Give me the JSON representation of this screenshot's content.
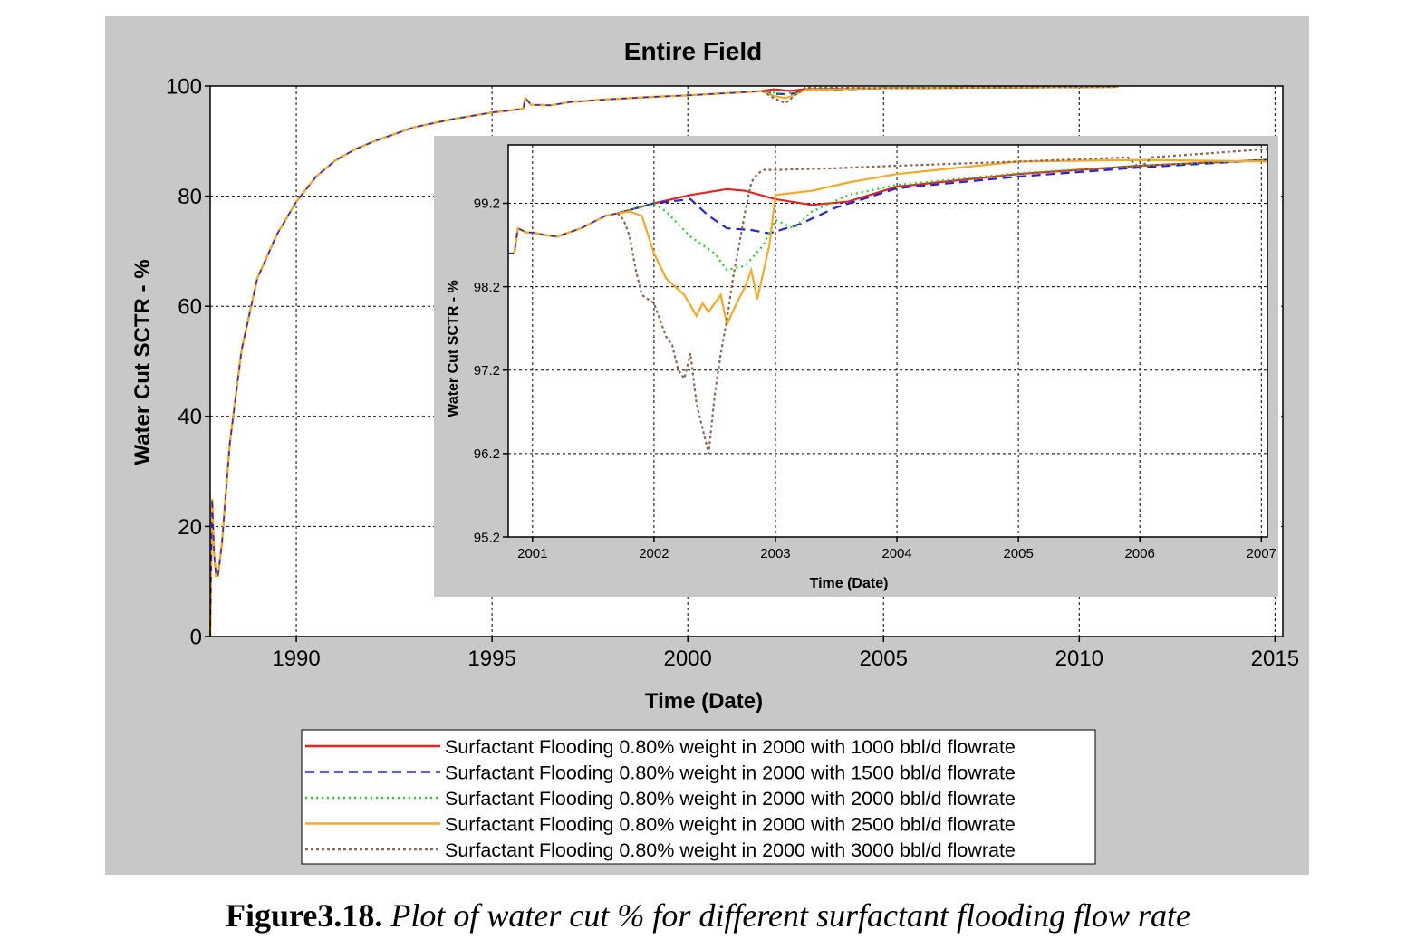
{
  "chart_data": [
    {
      "type": "line",
      "title": "Entire  Field",
      "xlabel": "Time (Date)",
      "ylabel": "Water Cut SCTR - %",
      "xlim": [
        1987.8,
        2015.2
      ],
      "ylim": [
        0,
        100
      ],
      "x_ticks": [
        "1990",
        "1995",
        "2000",
        "2005",
        "2010",
        "2015"
      ],
      "y_ticks": [
        "0",
        "20",
        "40",
        "60",
        "80",
        "100"
      ],
      "grid": true,
      "legend_position": "bottom",
      "base_history": {
        "x": [
          1987.8,
          1987.85,
          1987.9,
          1987.95,
          1988.0,
          1988.1,
          1988.3,
          1988.6,
          1989.0,
          1989.5,
          1990.0,
          1990.5,
          1991.0,
          1991.5,
          1992.0,
          1993.0,
          1994.0,
          1995.0,
          1995.5,
          1995.8,
          1995.85,
          1996.0,
          1996.5,
          1997.0,
          1998.0,
          1999.0,
          2000.0,
          2001.0,
          2001.5,
          2001.9
        ],
        "y": [
          0,
          25,
          15,
          11,
          11,
          17,
          35,
          52,
          65,
          73,
          79,
          83.5,
          86.5,
          88.5,
          90,
          92.5,
          94,
          95.2,
          95.6,
          95.9,
          97.8,
          96.6,
          96.5,
          97.1,
          97.6,
          98.0,
          98.3,
          98.7,
          98.9,
          99.1
        ]
      },
      "series": [
        {
          "name": "Surfactant Flooding 0.80% weight in 2000 with 1000 bbl/d flowrate",
          "color": "#e8221c",
          "dash": "solid",
          "x": [
            2001.9,
            2002.2,
            2002.6,
            2003.0,
            2005.0,
            2010.0,
            2011.0
          ],
          "y": [
            99.1,
            99.4,
            99.1,
            99.4,
            99.6,
            99.8,
            99.85
          ]
        },
        {
          "name": "Surfactant Flooding 0.80% weight in 2000 with 1500 bbl/d flowrate",
          "color": "#2424d8",
          "dash": "dashed",
          "x": [
            2001.9,
            2002.2,
            2002.6,
            2003.0,
            2005.0,
            2010.0,
            2011.0
          ],
          "y": [
            99.1,
            98.6,
            98.5,
            99.2,
            99.6,
            99.8,
            99.85
          ]
        },
        {
          "name": "Surfactant Flooding 0.80% weight in 2000 with 2000 bbl/d flowrate",
          "color": "#1ed21e",
          "dash": "dotted",
          "x": [
            2001.9,
            2002.2,
            2002.5,
            2002.8,
            2003.0,
            2005.0,
            2010.0,
            2011.0
          ],
          "y": [
            99.1,
            98.8,
            98.6,
            98.9,
            99.3,
            99.6,
            99.8,
            99.85
          ]
        },
        {
          "name": "Surfactant Flooding 0.80% weight in 2000 with 2500 bbl/d flowrate",
          "color": "#f7a824",
          "dash": "solid",
          "x": [
            2001.9,
            2002.2,
            2002.5,
            2002.8,
            2003.0,
            2005.0,
            2010.0,
            2011.0
          ],
          "y": [
            99.1,
            98.2,
            97.8,
            98.6,
            99.3,
            99.6,
            99.8,
            99.85
          ]
        },
        {
          "name": "Surfactant Flooding 0.80% weight in 2000 with 3000 bbl/d flowrate",
          "color": "#8b6650",
          "dash": "dashdot",
          "x": [
            2001.9,
            2002.2,
            2002.5,
            2002.8,
            2003.0,
            2005.0,
            2010.0,
            2011.0
          ],
          "y": [
            99.1,
            97.8,
            96.9,
            98.7,
            99.7,
            99.6,
            99.8,
            99.85
          ]
        }
      ]
    },
    {
      "type": "line",
      "title": "",
      "xlabel": "Time (Date)",
      "ylabel": "Water Cut SCTR - %",
      "xlim": [
        2000.8,
        2007.05
      ],
      "ylim": [
        95.2,
        99.9
      ],
      "x_ticks": [
        "2001",
        "2002",
        "2003",
        "2004",
        "2005",
        "2006",
        "2007"
      ],
      "y_ticks": [
        "95.2",
        "96.2",
        "97.2",
        "98.2",
        "99.2"
      ],
      "grid": true,
      "base_history": {
        "x": [
          2000.8,
          2000.85,
          2000.88,
          2000.95,
          2001.0,
          2001.1,
          2001.2,
          2001.4,
          2001.6,
          2001.7
        ],
        "y": [
          98.6,
          98.6,
          98.9,
          98.85,
          98.85,
          98.82,
          98.8,
          98.9,
          99.05,
          99.08
        ]
      },
      "series": [
        {
          "name": "1000 bbl/d",
          "color": "#e8221c",
          "dash": "solid",
          "x": [
            2001.7,
            2002.0,
            2002.3,
            2002.6,
            2002.75,
            2003.0,
            2003.3,
            2003.6,
            2004.0,
            2005.0,
            2006.0,
            2007.05
          ],
          "y": [
            99.08,
            99.2,
            99.3,
            99.37,
            99.35,
            99.25,
            99.18,
            99.22,
            99.4,
            99.55,
            99.65,
            99.72
          ]
        },
        {
          "name": "1500 bbl/d",
          "color": "#2424d8",
          "dash": "dashed",
          "x": [
            2001.7,
            2002.0,
            2002.3,
            2002.45,
            2002.6,
            2002.8,
            2002.95,
            2003.2,
            2003.5,
            2004.0,
            2005.0,
            2006.0,
            2007.05
          ],
          "y": [
            99.08,
            99.2,
            99.25,
            99.05,
            98.9,
            98.88,
            98.84,
            98.95,
            99.15,
            99.38,
            99.52,
            99.63,
            99.72
          ]
        },
        {
          "name": "2000 bbl/d",
          "color": "#1ed21e",
          "dash": "dotted",
          "x": [
            2001.7,
            2002.0,
            2002.1,
            2002.3,
            2002.5,
            2002.6,
            2002.75,
            2002.9,
            2003.0,
            2003.15,
            2003.3,
            2003.6,
            2004.0,
            2005.0,
            2006.0,
            2007.05
          ],
          "y": [
            99.08,
            99.2,
            99.1,
            98.8,
            98.6,
            98.4,
            98.45,
            98.7,
            99.0,
            98.9,
            99.1,
            99.3,
            99.42,
            99.56,
            99.65,
            99.72
          ]
        },
        {
          "name": "2500 bbl/d",
          "color": "#f7a824",
          "dash": "solid",
          "x": [
            2001.7,
            2001.8,
            2001.9,
            2002.0,
            2002.1,
            2002.25,
            2002.35,
            2002.4,
            2002.45,
            2002.55,
            2002.6,
            2002.68,
            2002.75,
            2002.8,
            2002.85,
            2002.95,
            2003.0,
            2003.3,
            2003.6,
            2004.0,
            2005.0,
            2006.0,
            2007.05
          ],
          "y": [
            99.08,
            99.1,
            99.05,
            98.6,
            98.3,
            98.1,
            97.85,
            98.0,
            97.9,
            98.1,
            97.75,
            98.0,
            98.2,
            98.4,
            98.05,
            98.7,
            99.3,
            99.35,
            99.45,
            99.55,
            99.7,
            99.72,
            99.7
          ]
        },
        {
          "name": "3000 bbl/d",
          "color": "#8b6650",
          "dash": "dashdot",
          "x": [
            2001.7,
            2001.75,
            2001.8,
            2001.85,
            2001.9,
            2002.0,
            2002.1,
            2002.15,
            2002.2,
            2002.25,
            2002.3,
            2002.35,
            2002.4,
            2002.45,
            2002.5,
            2002.55,
            2002.6,
            2002.65,
            2002.7,
            2002.75,
            2002.8,
            2002.85,
            2002.9,
            2003.0,
            2003.5,
            2004.0,
            2005.0,
            2005.9,
            2006.0,
            2006.1,
            2007.05
          ],
          "y": [
            99.08,
            99.0,
            98.8,
            98.4,
            98.1,
            98.0,
            97.6,
            97.5,
            97.2,
            97.1,
            97.4,
            96.8,
            96.5,
            96.2,
            96.9,
            97.4,
            97.8,
            98.3,
            98.7,
            99.1,
            99.45,
            99.55,
            99.6,
            99.6,
            99.62,
            99.65,
            99.7,
            99.75,
            99.62,
            99.75,
            99.85
          ]
        }
      ]
    }
  ],
  "caption": {
    "label": "Figure3.18.",
    "text": " Plot of water cut % for different surfactant flooding flow rate"
  }
}
